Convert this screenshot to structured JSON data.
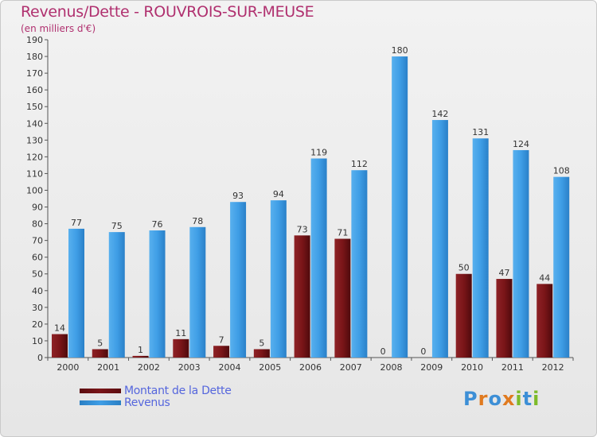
{
  "header": {
    "title": "Revenus/Dette - ROUVROIS-SUR-MEUSE",
    "subtitle": "(en milliers d'€)"
  },
  "legend": {
    "dette_label": "Montant de la Dette",
    "revenus_label": "Revenus"
  },
  "logo": {
    "text": "Proxiti"
  },
  "colors": {
    "dette": "#7a1518",
    "revenus": "#3f9ee6",
    "title": "#b0306f"
  },
  "chart_data": {
    "type": "bar",
    "title": "Revenus/Dette - ROUVROIS-SUR-MEUSE",
    "ylabel": "(en milliers d'€)",
    "xlabel": "",
    "categories": [
      "2000",
      "2001",
      "2002",
      "2003",
      "2004",
      "2005",
      "2006",
      "2007",
      "2008",
      "2009",
      "2010",
      "2011",
      "2012"
    ],
    "series": [
      {
        "name": "Montant de la Dette",
        "values": [
          14,
          5,
          1,
          11,
          7,
          5,
          73,
          71,
          0,
          0,
          50,
          47,
          44
        ]
      },
      {
        "name": "Revenus",
        "values": [
          77,
          75,
          76,
          78,
          93,
          94,
          119,
          112,
          180,
          142,
          131,
          124,
          108
        ]
      }
    ],
    "ylim": [
      0,
      190
    ],
    "yticks": [
      0,
      10,
      20,
      30,
      40,
      50,
      60,
      70,
      80,
      90,
      100,
      110,
      120,
      130,
      140,
      150,
      160,
      170,
      180,
      190
    ],
    "grid": false,
    "legend_position": "bottom-left"
  }
}
